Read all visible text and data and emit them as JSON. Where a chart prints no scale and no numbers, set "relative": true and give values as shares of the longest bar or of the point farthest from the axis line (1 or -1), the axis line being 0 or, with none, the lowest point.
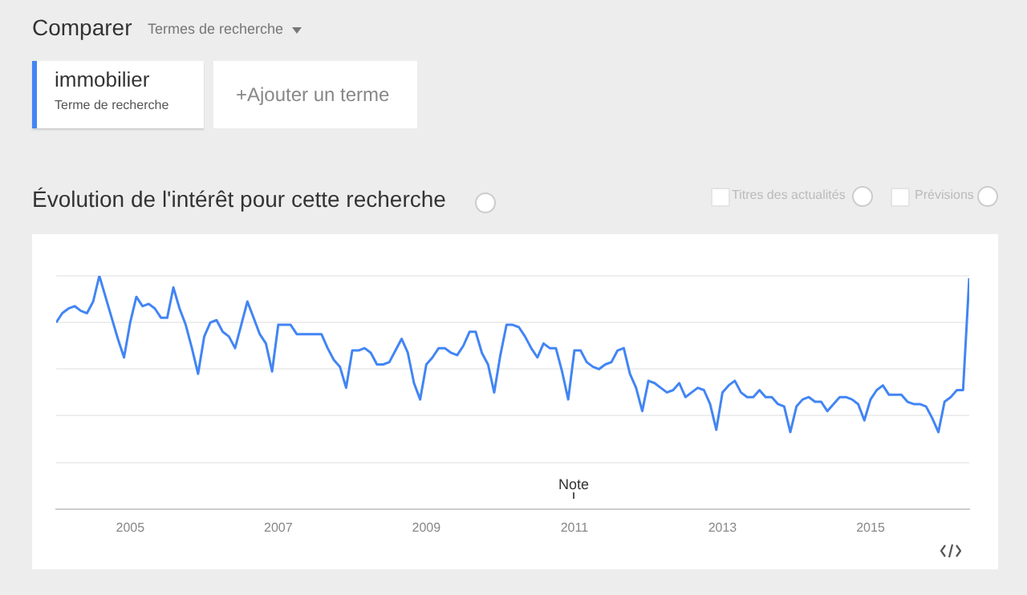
{
  "chart_data": {
    "type": "line",
    "relative": true,
    "title": "Évolution de l'intérêt pour cette recherche",
    "annotations": [
      "Comparer",
      "Termes de recherche",
      "Terme de recherche",
      "+Ajouter un terme",
      "Titres des actualités",
      "Prévisions",
      "Note"
    ],
    "x": [
      "2004-01",
      "2004-02",
      "2004-03",
      "2004-04",
      "2004-05",
      "2004-06",
      "2004-07",
      "2004-08",
      "2004-09",
      "2004-10",
      "2004-11",
      "2004-12",
      "2005-01",
      "2005-02",
      "2005-03",
      "2005-04",
      "2005-05",
      "2005-06",
      "2005-07",
      "2005-08",
      "2005-09",
      "2005-10",
      "2005-11",
      "2005-12",
      "2006-01",
      "2006-02",
      "2006-03",
      "2006-04",
      "2006-05",
      "2006-06",
      "2006-07",
      "2006-08",
      "2006-09",
      "2006-10",
      "2006-11",
      "2006-12",
      "2007-01",
      "2007-02",
      "2007-03",
      "2007-04",
      "2007-05",
      "2007-06",
      "2007-07",
      "2007-08",
      "2007-09",
      "2007-10",
      "2007-11",
      "2007-12",
      "2008-01",
      "2008-02",
      "2008-03",
      "2008-04",
      "2008-05",
      "2008-06",
      "2008-07",
      "2008-08",
      "2008-09",
      "2008-10",
      "2008-11",
      "2008-12",
      "2009-01",
      "2009-02",
      "2009-03",
      "2009-04",
      "2009-05",
      "2009-06",
      "2009-07",
      "2009-08",
      "2009-09",
      "2009-10",
      "2009-11",
      "2009-12",
      "2010-01",
      "2010-02",
      "2010-03",
      "2010-04",
      "2010-05",
      "2010-06",
      "2010-07",
      "2010-08",
      "2010-09",
      "2010-10",
      "2010-11",
      "2010-12",
      "2011-01",
      "2011-02",
      "2011-03",
      "2011-04",
      "2011-05",
      "2011-06",
      "2011-07",
      "2011-08",
      "2011-09",
      "2011-10",
      "2011-11",
      "2011-12",
      "2012-01",
      "2012-02",
      "2012-03",
      "2012-04",
      "2012-05",
      "2012-06",
      "2012-07",
      "2012-08",
      "2012-09",
      "2012-10",
      "2012-11",
      "2012-12",
      "2013-01",
      "2013-02",
      "2013-03",
      "2013-04",
      "2013-05",
      "2013-06",
      "2013-07",
      "2013-08",
      "2013-09",
      "2013-10",
      "2013-11",
      "2013-12",
      "2014-01",
      "2014-02",
      "2014-03",
      "2014-04",
      "2014-05",
      "2014-06",
      "2014-07",
      "2014-08",
      "2014-09",
      "2014-10",
      "2014-11",
      "2014-12",
      "2015-01",
      "2015-02",
      "2015-03",
      "2015-04",
      "2015-05",
      "2015-06",
      "2015-07",
      "2015-08",
      "2015-09",
      "2015-10",
      "2015-11",
      "2015-12",
      "2016-01",
      "2016-02",
      "2016-03",
      "2016-04",
      "2016-05"
    ],
    "xlim": [
      "2004-01",
      "2016-05"
    ],
    "xticks": [
      "2005",
      "2007",
      "2009",
      "2011",
      "2013",
      "2015"
    ],
    "series": [
      {
        "name": "immobilier",
        "color": "#4285f4",
        "values": [
          0.8,
          0.84,
          0.86,
          0.87,
          0.85,
          0.84,
          0.89,
          1.0,
          0.91,
          0.82,
          0.73,
          0.65,
          0.8,
          0.91,
          0.87,
          0.88,
          0.86,
          0.82,
          0.82,
          0.95,
          0.86,
          0.79,
          0.69,
          0.58,
          0.74,
          0.8,
          0.81,
          0.76,
          0.74,
          0.69,
          0.79,
          0.89,
          0.82,
          0.75,
          0.71,
          0.59,
          0.79,
          0.79,
          0.79,
          0.75,
          0.75,
          0.75,
          0.75,
          0.75,
          0.69,
          0.64,
          0.61,
          0.52,
          0.68,
          0.68,
          0.69,
          0.67,
          0.62,
          0.62,
          0.63,
          0.68,
          0.73,
          0.67,
          0.54,
          0.47,
          0.62,
          0.65,
          0.69,
          0.69,
          0.67,
          0.66,
          0.7,
          0.76,
          0.76,
          0.67,
          0.62,
          0.5,
          0.66,
          0.79,
          0.79,
          0.78,
          0.74,
          0.69,
          0.65,
          0.71,
          0.69,
          0.69,
          0.59,
          0.47,
          0.68,
          0.68,
          0.63,
          0.61,
          0.6,
          0.62,
          0.63,
          0.68,
          0.69,
          0.58,
          0.52,
          0.42,
          0.55,
          0.54,
          0.52,
          0.5,
          0.51,
          0.54,
          0.48,
          0.5,
          0.52,
          0.51,
          0.45,
          0.34,
          0.5,
          0.53,
          0.55,
          0.5,
          0.48,
          0.48,
          0.51,
          0.48,
          0.48,
          0.45,
          0.44,
          0.33,
          0.44,
          0.47,
          0.48,
          0.46,
          0.46,
          0.42,
          0.45,
          0.48,
          0.48,
          0.47,
          0.45,
          0.38,
          0.47,
          0.51,
          0.53,
          0.49,
          0.49,
          0.49,
          0.46,
          0.45,
          0.45,
          0.44,
          0.39,
          0.33,
          0.46,
          0.48,
          0.51,
          0.51,
          0.99
        ]
      }
    ],
    "grid": "y",
    "legend": "top left",
    "marker": "none",
    "line_style": "solid"
  }
}
